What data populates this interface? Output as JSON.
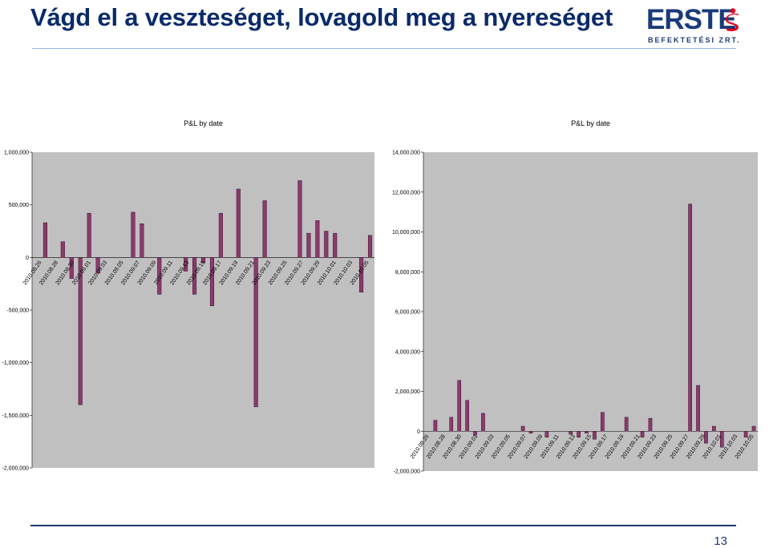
{
  "slide": {
    "title": "Vágd el a veszteséget, lovagold meg a nyereséget",
    "page_number": "13"
  },
  "logo": {
    "name": "ERSTE",
    "subtitle": "BEFEKTETÉSI ZRT.",
    "colors": {
      "text": "#1a3a7a",
      "mark": "#e3001b"
    }
  },
  "colors": {
    "bar": "#8b3a6b",
    "plot_bg": "#c0c0c0"
  },
  "chart_data": [
    {
      "type": "bar",
      "title": "P&L by date",
      "ylim": [
        -2000000,
        1000000
      ],
      "yticks": [
        1000000,
        500000,
        0,
        -500000,
        -1000000,
        -1500000,
        -2000000
      ],
      "ytick_labels": [
        "1,000,000",
        "500,000",
        "0",
        "-500,000",
        "-1,000,000",
        "-1,500,000",
        "-2,000,000"
      ],
      "xtick_labels": [
        "2010.08.26",
        "2010.08.28",
        "2010.08.30",
        "2010.09.01",
        "2010.09.03",
        "2010.09.05",
        "2010.09.07",
        "2010.09.09",
        "2010.09.11",
        "2010.09.13",
        "2010.09.15",
        "2010.09.17",
        "2010.09.19",
        "2010.09.21",
        "2010.09.23",
        "2010.09.25",
        "2010.09.27",
        "2010.09.29",
        "2010.10.01",
        "2010.10.03",
        "2010.10.05"
      ],
      "values": [
        0,
        330000,
        0,
        150000,
        -200000,
        -1400000,
        420000,
        -150000,
        0,
        0,
        0,
        430000,
        320000,
        0,
        -350000,
        0,
        0,
        -130000,
        -350000,
        -50000,
        -460000,
        420000,
        0,
        650000,
        0,
        -1420000,
        540000,
        0,
        0,
        0,
        730000,
        230000,
        350000,
        250000,
        230000,
        0,
        0,
        -330000,
        210000
      ],
      "grid": false
    },
    {
      "type": "bar",
      "title": "P&L by date",
      "ylim": [
        -2000000,
        14000000
      ],
      "yticks": [
        14000000,
        12000000,
        10000000,
        8000000,
        6000000,
        4000000,
        2000000,
        0,
        -2000000
      ],
      "ytick_labels": [
        "14,000,000",
        "12,000,000",
        "10,000,000",
        "8,000,000",
        "6,000,000",
        "4,000,000",
        "2,000,000",
        "0",
        "-2,000,000"
      ],
      "xtick_labels": [
        "2010.08.26",
        "2010.08.28",
        "2010.08.30",
        "2010.09.01",
        "2010.09.03",
        "2010.09.05",
        "2010.09.07",
        "2010.09.09",
        "2010.09.11",
        "2010.09.13",
        "2010.09.15",
        "2010.09.17",
        "2010.09.19",
        "2010.09.21",
        "2010.09.23",
        "2010.09.25",
        "2010.09.27",
        "2010.09.29",
        "2010.10.01",
        "2010.10.03",
        "2010.10.05"
      ],
      "values": [
        0,
        550000,
        0,
        700000,
        2550000,
        1550000,
        -200000,
        900000,
        0,
        0,
        0,
        0,
        250000,
        -100000,
        0,
        -300000,
        0,
        0,
        -150000,
        -300000,
        -100000,
        -400000,
        950000,
        0,
        0,
        700000,
        0,
        -300000,
        650000,
        0,
        0,
        0,
        0,
        11400000,
        2300000,
        -600000,
        250000,
        -800000,
        0,
        0,
        -300000,
        250000
      ],
      "grid": false
    }
  ]
}
